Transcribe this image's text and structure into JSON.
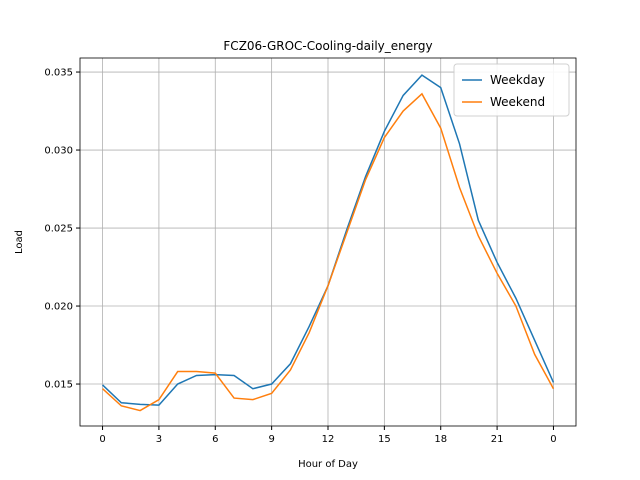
{
  "chart_data": {
    "type": "line",
    "title": "FCZ06-GROC-Cooling-daily_energy",
    "x_label": "Hour of Day",
    "y_label": "Load",
    "x": [
      0,
      1,
      2,
      3,
      4,
      5,
      6,
      7,
      8,
      9,
      10,
      11,
      12,
      13,
      14,
      15,
      16,
      17,
      18,
      19,
      20,
      21,
      22,
      23,
      24
    ],
    "series": [
      {
        "name": "Weekday",
        "color": "#1f77b4",
        "values": [
          0.01494,
          0.0138,
          0.0137,
          0.01365,
          0.015,
          0.01555,
          0.0156,
          0.01555,
          0.0147,
          0.015,
          0.0163,
          0.0187,
          0.0213,
          0.0249,
          0.0283,
          0.0312,
          0.0335,
          0.0348,
          0.034,
          0.0304,
          0.0255,
          0.0228,
          0.0205,
          0.0178,
          0.0151
        ]
      },
      {
        "name": "Weekend",
        "color": "#ff7f0e",
        "values": [
          0.0147,
          0.0136,
          0.0133,
          0.014,
          0.0158,
          0.0158,
          0.0157,
          0.0141,
          0.014,
          0.0144,
          0.0159,
          0.0183,
          0.0213,
          0.0247,
          0.0281,
          0.0308,
          0.0325,
          0.0336,
          0.0314,
          0.0276,
          0.0245,
          0.0221,
          0.02,
          0.0169,
          0.0147
        ]
      }
    ],
    "xlim": [
      -1.2,
      25.2
    ],
    "xticks": [
      0,
      3,
      6,
      9,
      12,
      15,
      18,
      21,
      {
        "value": 24,
        "label": "0"
      }
    ],
    "ylim": [
      0.01231,
      0.0359
    ],
    "yticks": [
      0.015,
      {
        "value": 0.02,
        "label": "0.020"
      },
      0.025,
      {
        "value": 0.03,
        "label": "0.030"
      },
      0.035
    ],
    "grid": true,
    "legend": "upper-right"
  }
}
